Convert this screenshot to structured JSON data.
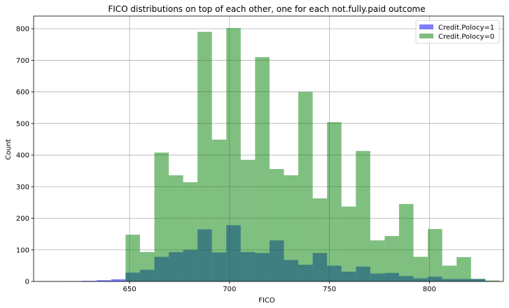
{
  "chart_data": {
    "type": "bar",
    "title": "FICO distributions on top of each other, one for each not.fully.paid outcome",
    "xlabel": "FICO",
    "ylabel": "Count",
    "xlim": [
      602,
      837
    ],
    "ylim": [
      0,
      840
    ],
    "xticks": [
      650,
      700,
      750,
      800
    ],
    "yticks": [
      0,
      100,
      200,
      300,
      400,
      500,
      600,
      700,
      800
    ],
    "grid": true,
    "legend_position": "top-right",
    "bin_start": 612,
    "bin_width": 7.2,
    "series": [
      {
        "name": "Credit.Polocy=1",
        "color": "#0000ff",
        "opacity": 0.5,
        "values": [
          0,
          1,
          2,
          4,
          7,
          28,
          37,
          78,
          93,
          100,
          165,
          92,
          178,
          93,
          90,
          130,
          68,
          53,
          90,
          50,
          31,
          47,
          25,
          27,
          17,
          10,
          15,
          8,
          8,
          8,
          0
        ]
      },
      {
        "name": "Credit.Polocy=0",
        "color": "#008000",
        "opacity": 0.5,
        "values": [
          0,
          0,
          0,
          0,
          0,
          148,
          93,
          408,
          336,
          314,
          790,
          449,
          802,
          385,
          710,
          356,
          336,
          600,
          263,
          504,
          237,
          413,
          130,
          144,
          245,
          78,
          166,
          50,
          77,
          8,
          3
        ]
      }
    ]
  }
}
